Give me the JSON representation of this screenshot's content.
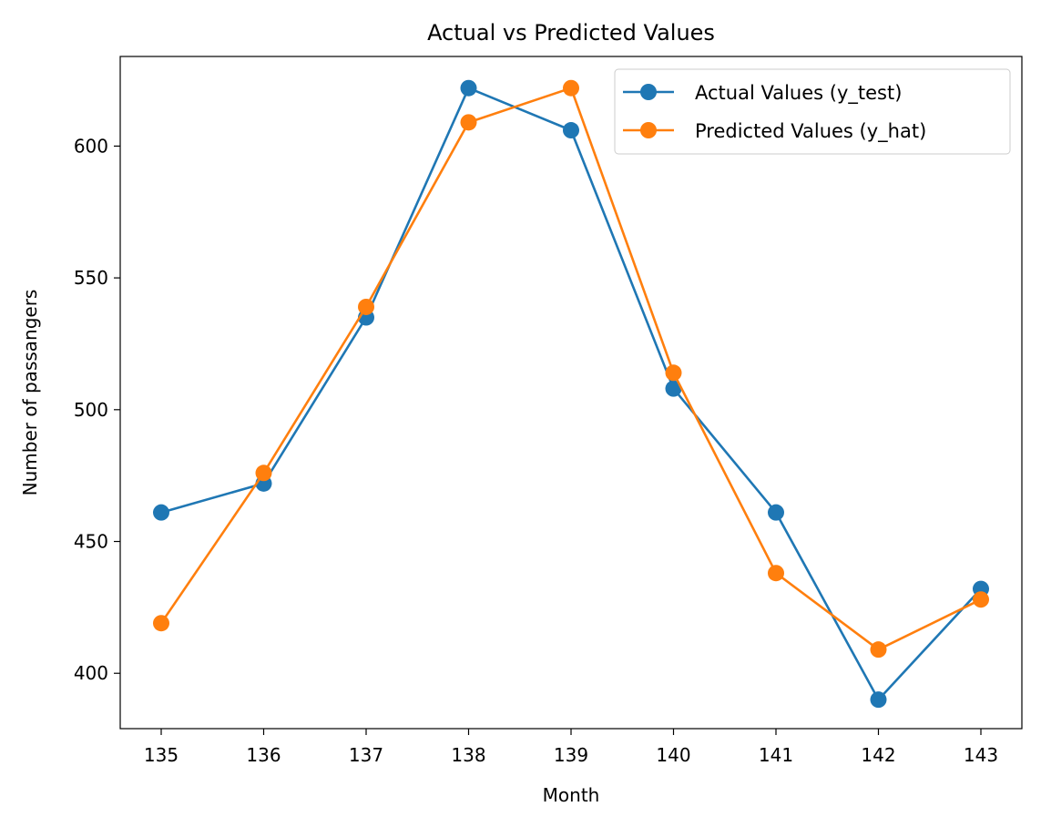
{
  "chart_data": {
    "type": "line",
    "title": "Actual vs Predicted Values",
    "xlabel": "Month",
    "ylabel": "Number of passangers",
    "x": [
      135,
      136,
      137,
      138,
      139,
      140,
      141,
      142,
      143
    ],
    "xlim": [
      134.6,
      143.4
    ],
    "ylim": [
      379,
      634
    ],
    "xticks": [
      "135",
      "136",
      "137",
      "138",
      "139",
      "140",
      "141",
      "142",
      "143"
    ],
    "yticks": [
      "400",
      "450",
      "500",
      "550",
      "600"
    ],
    "grid": false,
    "legend_position": "top-right",
    "series": [
      {
        "name": "Actual Values (y_test)",
        "color": "#1f77b4",
        "marker": "circle",
        "values": [
          461,
          472,
          535,
          622,
          606,
          508,
          461,
          390,
          432
        ]
      },
      {
        "name": "Predicted Values (y_hat)",
        "color": "#ff7f0e",
        "marker": "circle",
        "values": [
          419,
          476,
          539,
          609,
          622,
          514,
          438,
          409,
          428
        ]
      }
    ]
  }
}
